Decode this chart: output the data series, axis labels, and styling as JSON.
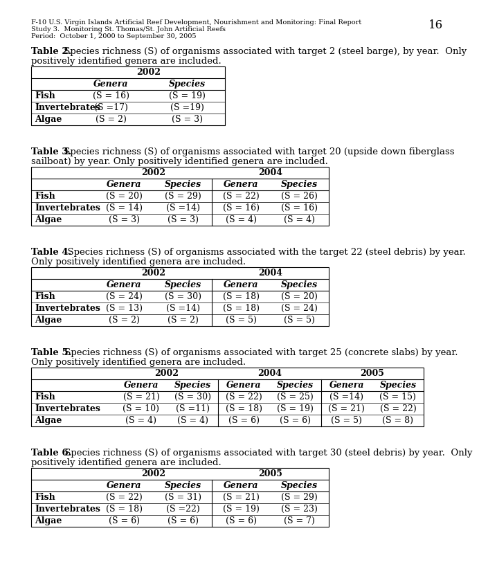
{
  "header_line1": "F-10 U.S. Virgin Islands Artificial Reef Development, Nourishment and Monitoring: Final Report",
  "header_line2": "Study 3.  Monitoring St. Thomas/St. John Artificial Reefs",
  "header_line3": "Period:  October 1, 2000 to September 30, 2005",
  "page_number": "16",
  "table2_caption_bold": "Table 2.",
  "table2_caption_rest": " Species richness (S) of organisms associated with target 2 (steel barge), by year.  Only\npositively identified genera are included.",
  "table2_years": [
    "2002"
  ],
  "table2_subheaders": [
    "Genera",
    "Species"
  ],
  "table2_rows": [
    [
      "Fish",
      "(S = 16)",
      "(S = 19)"
    ],
    [
      "Invertebrates",
      "(S =17)",
      "(S =19)"
    ],
    [
      "Algae",
      "(S = 2)",
      "(S = 3)"
    ]
  ],
  "table2_num_year_cols": 1,
  "table3_caption_bold": "Table 3.",
  "table3_caption_rest": " Species richness (S) of organisms associated with target 20 (upside down fiberglass\nsailboat) by year. Only positively identified genera are included.",
  "table3_years": [
    "2002",
    "2004"
  ],
  "table3_subheaders": [
    "Genera",
    "Species",
    "Genera",
    "Species"
  ],
  "table3_rows": [
    [
      "Fish",
      "(S = 20)",
      "(S = 29)",
      "(S = 22)",
      "(S = 26)"
    ],
    [
      "Invertebrates",
      "(S = 14)",
      "(S =14)",
      "(S = 16)",
      "(S = 16)"
    ],
    [
      "Algae",
      "(S = 3)",
      "(S = 3)",
      "(S = 4)",
      "(S = 4)"
    ]
  ],
  "table3_num_year_cols": 2,
  "table4_caption_bold": "Table 4.",
  "table4_caption_rest": "  Species richness (S) of organisms associated with the target 22 (steel debris) by year.\nOnly positively identified genera are included.",
  "table4_years": [
    "2002",
    "2004"
  ],
  "table4_subheaders": [
    "Genera",
    "Species",
    "Genera",
    "Species"
  ],
  "table4_rows": [
    [
      "Fish",
      "(S = 24)",
      "(S = 30)",
      "(S = 18)",
      "(S = 20)"
    ],
    [
      "Invertebrates",
      "(S = 13)",
      "(S =14)",
      "(S = 18)",
      "(S = 24)"
    ],
    [
      "Algae",
      "(S = 2)",
      "(S = 2)",
      "(S = 5)",
      "(S = 5)"
    ]
  ],
  "table4_num_year_cols": 2,
  "table5_caption_bold": "Table 5.",
  "table5_caption_rest": " Species richness (S) of organisms associated with target 25 (concrete slabs) by year.\nOnly positively identified genera are included.",
  "table5_years": [
    "2002",
    "2004",
    "2005"
  ],
  "table5_subheaders": [
    "Genera",
    "Species",
    "Genera",
    "Species",
    "Genera",
    "Species"
  ],
  "table5_rows": [
    [
      "Fish",
      "(S = 21)",
      "(S = 30)",
      "(S = 22)",
      "(S = 25)",
      "(S =14)",
      "(S = 15)"
    ],
    [
      "Invertebrates",
      "(S = 10)",
      "(S =11)",
      "(S = 18)",
      "(S = 19)",
      "(S = 21)",
      "(S = 22)"
    ],
    [
      "Algae",
      "(S = 4)",
      "(S = 4)",
      "(S = 6)",
      "(S = 6)",
      "(S = 5)",
      "(S = 8)"
    ]
  ],
  "table5_num_year_cols": 3,
  "table6_caption_bold": "Table 6.",
  "table6_caption_rest": " Species richness (S) of organisms associated with target 30 (steel debris) by year.  Only\npositively identified genera are included.",
  "table6_years": [
    "2002",
    "2005"
  ],
  "table6_subheaders": [
    "Genera",
    "Species",
    "Genera",
    "Species"
  ],
  "table6_rows": [
    [
      "Fish",
      "(S = 22)",
      "(S = 31)",
      "(S = 21)",
      "(S = 29)"
    ],
    [
      "Invertebrates",
      "(S = 18)",
      "(S =22)",
      "(S = 19)",
      "(S = 23)"
    ],
    [
      "Algae",
      "(S = 6)",
      "(S = 6)",
      "(S = 6)",
      "(S = 7)"
    ]
  ],
  "table6_num_year_cols": 2,
  "bg_color": "#ffffff",
  "text_color": "#000000",
  "header_fontsize": 7.0,
  "caption_fontsize": 9.5,
  "table_fontsize": 9.0,
  "page_num_fontsize": 12
}
